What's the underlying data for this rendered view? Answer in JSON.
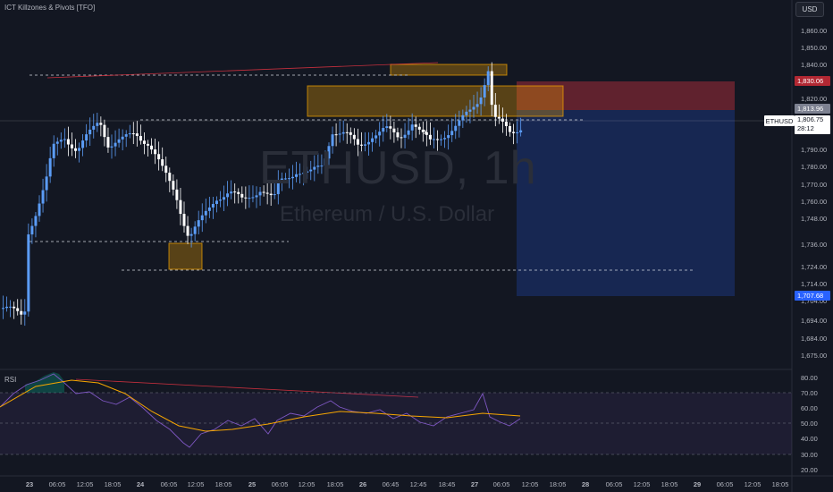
{
  "indicator_title": "ICT Killzones & Pivots [TFO]",
  "currency_button": "USD",
  "watermark": {
    "symbol": "ETHUSD, 1h",
    "description": "Ethereum / U.S. Dollar"
  },
  "rsi_label": "RSI",
  "price_tags": {
    "stop": "1,830.06",
    "last": "1,813.96",
    "target": "1,707.68",
    "symbol": "ETHUSD",
    "current": "1,806.75",
    "countdown": "28:12"
  },
  "colors": {
    "background": "#131722",
    "up_candle": "#5b9cf6",
    "down_candle": "#ffffff",
    "stop_zone": "#f23645",
    "target_zone": "#2962ff",
    "order_block": "#f7a600",
    "rsi_line": "#7e57c2",
    "rsi_ma": "#f7a600"
  },
  "chart_data": [
    {
      "type": "candlestick",
      "symbol": "ETHUSD",
      "interval": "1h",
      "price_axis_labels": [
        "1,860.00",
        "1,850.00",
        "1,840.00",
        "1,820.00",
        "1,790.00",
        "1,780.00",
        "1,770.00",
        "1,760.00",
        "1,748.00",
        "1,736.00",
        "1,724.00",
        "1,714.00",
        "1,704.00",
        "1,694.00",
        "1,684.00",
        "1,675.00"
      ],
      "time_axis_labels": [
        "23",
        "06:05",
        "12:05",
        "18:05",
        "24",
        "06:05",
        "12:05",
        "18:05",
        "25",
        "06:05",
        "12:05",
        "18:05",
        "26",
        "06:45",
        "12:45",
        "18:45",
        "27",
        "06:05",
        "12:05",
        "18:05",
        "28",
        "06:05",
        "12:05",
        "18:05",
        "29",
        "06:05",
        "12:05",
        "18:05"
      ],
      "ylim": [
        1670,
        1865
      ],
      "position": {
        "side": "short",
        "entry": 1813.96,
        "stop": 1830.06,
        "target": 1707.68
      }
    },
    {
      "type": "line",
      "name": "RSI",
      "y_axis_labels": [
        "80.00",
        "70.00",
        "60.00",
        "50.00",
        "40.00",
        "30.00",
        "20.00"
      ],
      "ylim": [
        15,
        85
      ],
      "bands": [
        30,
        70
      ]
    }
  ]
}
